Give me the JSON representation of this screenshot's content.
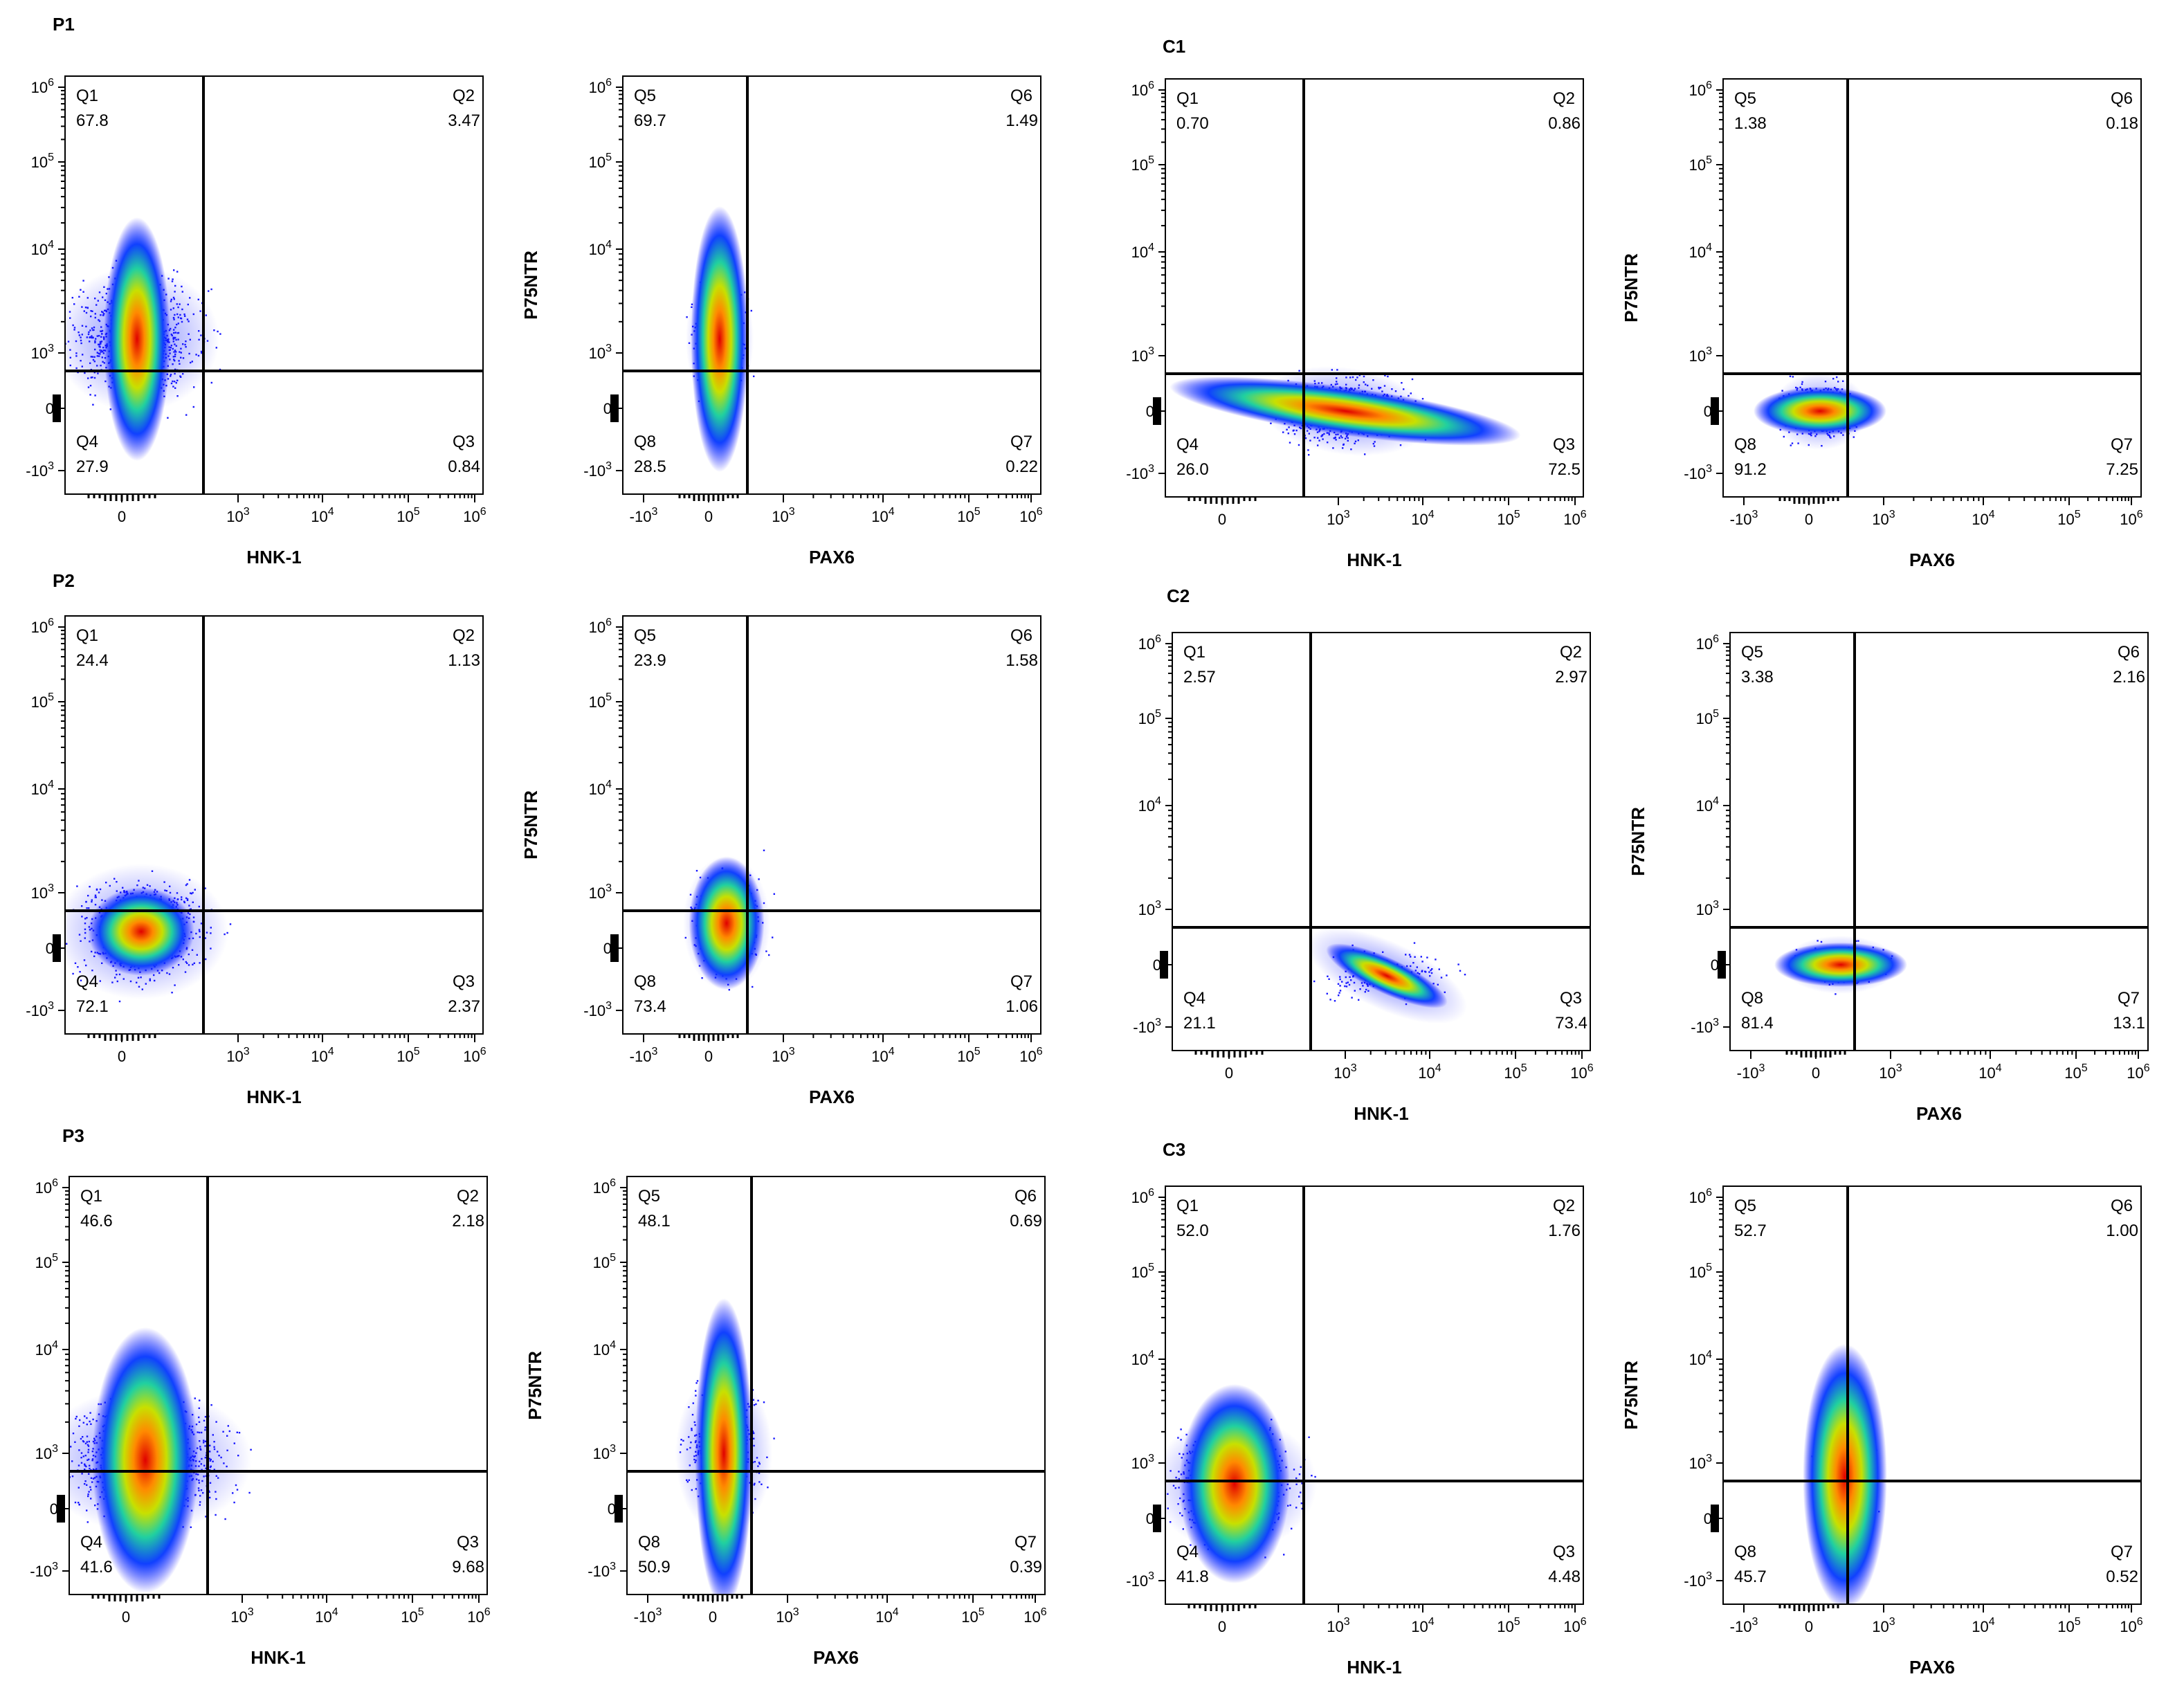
{
  "axis_ticks": {
    "y": [
      {
        "base": "10",
        "exp": "6"
      },
      {
        "base": "10",
        "exp": "5"
      },
      {
        "base": "10",
        "exp": "4"
      },
      {
        "base": "10",
        "exp": "3"
      },
      {
        "base": "0"
      },
      {
        "base": "-10",
        "exp": "3"
      }
    ],
    "hnk": [
      {
        "base": "0"
      },
      {
        "base": "10",
        "exp": "3"
      },
      {
        "base": "10",
        "exp": "4"
      },
      {
        "base": "10",
        "exp": "5"
      },
      {
        "base": "10",
        "exp": "6"
      }
    ],
    "pax6": [
      {
        "base": "-10",
        "exp": "3"
      },
      {
        "base": "0"
      },
      {
        "base": "10",
        "exp": "3"
      },
      {
        "base": "10",
        "exp": "4"
      },
      {
        "base": "10",
        "exp": "5"
      },
      {
        "base": "10",
        "exp": "6"
      }
    ]
  },
  "panels": [
    {
      "label": "P1",
      "plots": [
        {
          "x_label": "HNK-1",
          "quadrants": [
            {
              "name": "Q1",
              "value": "67.8"
            },
            {
              "name": "Q2",
              "value": "3.47"
            },
            {
              "name": "Q3",
              "value": "0.84"
            },
            {
              "name": "Q4",
              "value": "27.9"
            }
          ]
        },
        {
          "x_label": "PAX6",
          "y_label": "P75NTR",
          "quadrants": [
            {
              "name": "Q5",
              "value": "69.7"
            },
            {
              "name": "Q6",
              "value": "1.49"
            },
            {
              "name": "Q7",
              "value": "0.22"
            },
            {
              "name": "Q8",
              "value": "28.5"
            }
          ]
        }
      ]
    },
    {
      "label": "C1",
      "plots": [
        {
          "x_label": "HNK-1",
          "quadrants": [
            {
              "name": "Q1",
              "value": "0.70"
            },
            {
              "name": "Q2",
              "value": "0.86"
            },
            {
              "name": "Q3",
              "value": "72.5"
            },
            {
              "name": "Q4",
              "value": "26.0"
            }
          ]
        },
        {
          "x_label": "PAX6",
          "y_label": "P75NTR",
          "quadrants": [
            {
              "name": "Q5",
              "value": "1.38"
            },
            {
              "name": "Q6",
              "value": "0.18"
            },
            {
              "name": "Q7",
              "value": "7.25"
            },
            {
              "name": "Q8",
              "value": "91.2"
            }
          ]
        }
      ]
    },
    {
      "label": "P2",
      "plots": [
        {
          "x_label": "HNK-1",
          "quadrants": [
            {
              "name": "Q1",
              "value": "24.4"
            },
            {
              "name": "Q2",
              "value": "1.13"
            },
            {
              "name": "Q3",
              "value": "2.37"
            },
            {
              "name": "Q4",
              "value": "72.1"
            }
          ]
        },
        {
          "x_label": "PAX6",
          "y_label": "P75NTR",
          "quadrants": [
            {
              "name": "Q5",
              "value": "23.9"
            },
            {
              "name": "Q6",
              "value": "1.58"
            },
            {
              "name": "Q7",
              "value": "1.06"
            },
            {
              "name": "Q8",
              "value": "73.4"
            }
          ]
        }
      ]
    },
    {
      "label": "C2",
      "plots": [
        {
          "x_label": "HNK-1",
          "quadrants": [
            {
              "name": "Q1",
              "value": "2.57"
            },
            {
              "name": "Q2",
              "value": "2.97"
            },
            {
              "name": "Q3",
              "value": "73.4"
            },
            {
              "name": "Q4",
              "value": "21.1"
            }
          ]
        },
        {
          "x_label": "PAX6",
          "y_label": "P75NTR",
          "quadrants": [
            {
              "name": "Q5",
              "value": "3.38"
            },
            {
              "name": "Q6",
              "value": "2.16"
            },
            {
              "name": "Q7",
              "value": "13.1"
            },
            {
              "name": "Q8",
              "value": "81.4"
            }
          ]
        }
      ]
    },
    {
      "label": "P3",
      "plots": [
        {
          "x_label": "HNK-1",
          "quadrants": [
            {
              "name": "Q1",
              "value": "46.6"
            },
            {
              "name": "Q2",
              "value": "2.18"
            },
            {
              "name": "Q3",
              "value": "9.68"
            },
            {
              "name": "Q4",
              "value": "41.6"
            }
          ]
        },
        {
          "x_label": "PAX6",
          "y_label": "P75NTR",
          "quadrants": [
            {
              "name": "Q5",
              "value": "48.1"
            },
            {
              "name": "Q6",
              "value": "0.69"
            },
            {
              "name": "Q7",
              "value": "0.39"
            },
            {
              "name": "Q8",
              "value": "50.9"
            }
          ]
        }
      ]
    },
    {
      "label": "C3",
      "plots": [
        {
          "x_label": "HNK-1",
          "quadrants": [
            {
              "name": "Q1",
              "value": "52.0"
            },
            {
              "name": "Q2",
              "value": "1.76"
            },
            {
              "name": "Q3",
              "value": "4.48"
            },
            {
              "name": "Q4",
              "value": "41.8"
            }
          ]
        },
        {
          "x_label": "PAX6",
          "y_label": "P75NTR",
          "quadrants": [
            {
              "name": "Q5",
              "value": "52.7"
            },
            {
              "name": "Q6",
              "value": "1.00"
            },
            {
              "name": "Q7",
              "value": "0.52"
            },
            {
              "name": "Q8",
              "value": "45.7"
            }
          ]
        }
      ]
    }
  ]
}
